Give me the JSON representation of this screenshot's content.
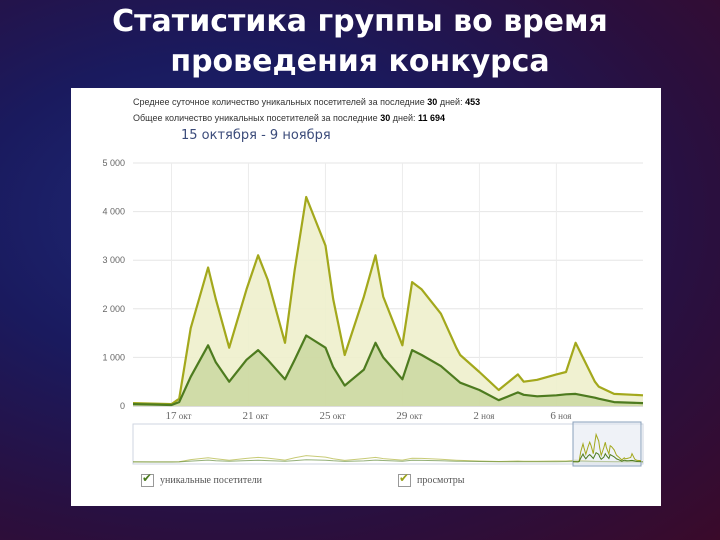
{
  "slide": {
    "title_line1": "Статистика группы во время",
    "title_line2": "проведения конкурса"
  },
  "stats": {
    "avg_label": "Среднее суточное количество уникальных посетителей за последние",
    "avg_days": "30",
    "avg_days_suffix": "дней:",
    "avg_value": "453",
    "total_label": "Общее количество уникальных посетителей за последние",
    "total_days": "30",
    "total_days_suffix": "дней:",
    "total_value": "11 694"
  },
  "date_range": "15 октября - 9 ноября",
  "legend": {
    "unique": "уникальные посетители",
    "views": "просмотры"
  },
  "colors": {
    "views_line": "#a3a81c",
    "views_fill": "#eef0cc",
    "unique_line": "#4d7b1f",
    "unique_fill": "#c5d49a"
  },
  "chart_data": {
    "type": "area",
    "ylim": [
      0,
      5000
    ],
    "yticks": [
      "0",
      "1 000",
      "2 000",
      "3 000",
      "4 000",
      "5 000"
    ],
    "ytick_values": [
      0,
      1000,
      2000,
      3000,
      4000,
      5000
    ],
    "xlim": [
      0,
      26.5
    ],
    "xticks": [
      {
        "x": 2,
        "num": "17",
        "month": "окт"
      },
      {
        "x": 6,
        "num": "21",
        "month": "окт"
      },
      {
        "x": 10,
        "num": "25",
        "month": "окт"
      },
      {
        "x": 14,
        "num": "29",
        "month": "окт"
      },
      {
        "x": 18,
        "num": "2",
        "month": "ноя"
      },
      {
        "x": 22,
        "num": "6",
        "month": "ноя"
      }
    ],
    "x": [
      0,
      1,
      2,
      2.4,
      3,
      3.9,
      4.3,
      5,
      5.9,
      6.5,
      7,
      7.9,
      8.4,
      9,
      10,
      10.4,
      11,
      12,
      12.6,
      13,
      14,
      14.5,
      15,
      16,
      16.8,
      17,
      18,
      19,
      20,
      20.3,
      21,
      22,
      22.5,
      23,
      24,
      24.2,
      25,
      26.5
    ],
    "series": [
      {
        "name": "просмотры",
        "values": [
          60,
          50,
          40,
          150,
          1600,
          2850,
          2200,
          1200,
          2400,
          3100,
          2600,
          1300,
          2800,
          4300,
          3300,
          2200,
          1050,
          2250,
          3100,
          2250,
          1250,
          2550,
          2400,
          1900,
          1200,
          1050,
          700,
          330,
          650,
          500,
          540,
          650,
          700,
          1300,
          500,
          400,
          250,
          220
        ]
      },
      {
        "name": "уникальные посетители",
        "values": [
          40,
          30,
          20,
          80,
          600,
          1250,
          900,
          500,
          950,
          1150,
          950,
          550,
          950,
          1450,
          1200,
          800,
          420,
          750,
          1300,
          1000,
          550,
          1150,
          1050,
          820,
          550,
          480,
          330,
          120,
          280,
          230,
          200,
          220,
          240,
          250,
          170,
          150,
          80,
          60
        ]
      }
    ]
  }
}
